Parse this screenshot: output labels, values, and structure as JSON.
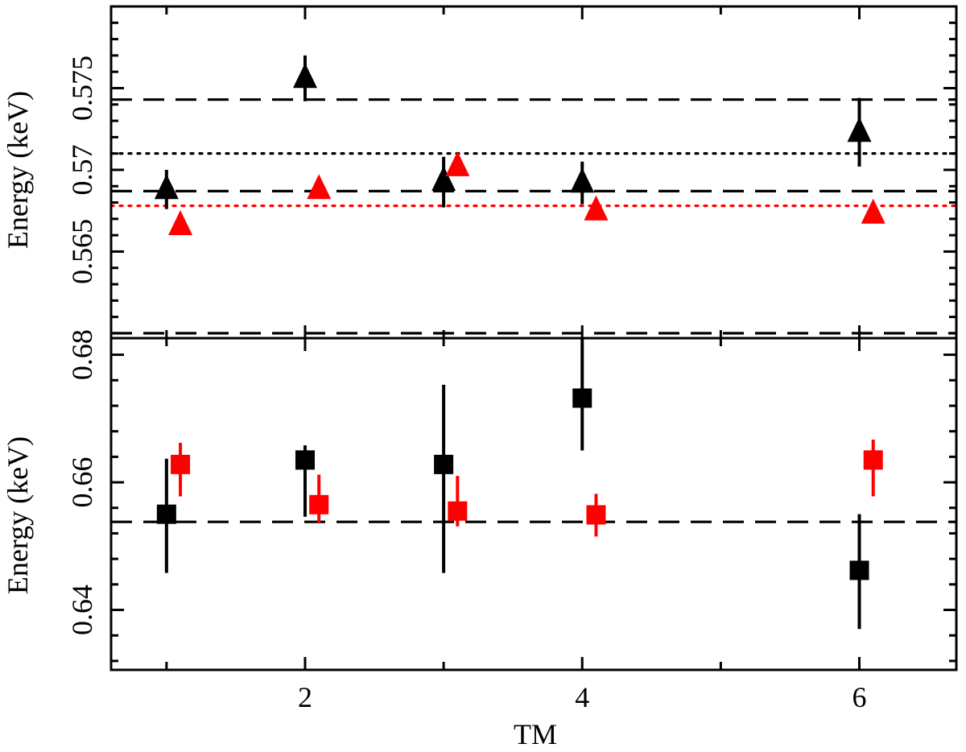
{
  "colors": {
    "black": "#000000",
    "red": "#ff0000",
    "background": "#ffffff"
  },
  "chart_data": [
    {
      "type": "scatter",
      "panel": "top",
      "marker": "triangle",
      "xlabel": "",
      "ylabel": "Energy (keV)",
      "xlim": [
        0.6,
        6.7
      ],
      "ylim": [
        0.5597,
        0.58
      ],
      "xticks": [
        2,
        4,
        6
      ],
      "xtick_labels": [
        "",
        "",
        ""
      ],
      "yticks": [
        0.565,
        0.57,
        0.575
      ],
      "ytick_labels": [
        "0.565",
        "0.57",
        "0.575"
      ],
      "series": [
        {
          "color": "#000000",
          "points": [
            {
              "x": 1,
              "y": 0.5688,
              "err": [
                0.5676,
                0.57
              ]
            },
            {
              "x": 2,
              "y": 0.5756,
              "err": [
                0.5742,
                0.577
              ]
            },
            {
              "x": 3,
              "y": 0.5693,
              "err": [
                0.5677,
                0.5708
              ]
            },
            {
              "x": 4,
              "y": 0.5692,
              "err": [
                0.5679,
                0.5705
              ]
            },
            {
              "x": 6,
              "y": 0.5723,
              "err": [
                0.5702,
                0.5744
              ]
            }
          ]
        },
        {
          "color": "#ff0000",
          "points": [
            {
              "x": 1.1,
              "y": 0.5666,
              "err": [
                0.5661,
                0.5671
              ]
            },
            {
              "x": 2.1,
              "y": 0.5688,
              "err": [
                0.5683,
                0.5693
              ]
            },
            {
              "x": 3.1,
              "y": 0.5702,
              "err": [
                0.5697,
                0.5707
              ]
            },
            {
              "x": 4.1,
              "y": 0.5675,
              "err": [
                0.567,
                0.568
              ]
            },
            {
              "x": 6.1,
              "y": 0.5673,
              "err": [
                0.5668,
                0.5678
              ]
            }
          ]
        }
      ],
      "hlines": [
        {
          "y": 0.5743,
          "style": "dashed",
          "color": "#000000"
        },
        {
          "y": 0.571,
          "style": "dotted",
          "color": "#000000"
        },
        {
          "y": 0.5687,
          "style": "dashed",
          "color": "#000000"
        },
        {
          "y": 0.5678,
          "style": "dotted",
          "color": "#ff0000"
        },
        {
          "y": 0.56,
          "style": "dashed",
          "color": "#000000"
        }
      ]
    },
    {
      "type": "scatter",
      "panel": "bottom",
      "marker": "square",
      "xlabel": "TM",
      "ylabel": "Energy (keV)",
      "xlim": [
        0.6,
        6.7
      ],
      "ylim": [
        0.6306,
        0.6826
      ],
      "xticks": [
        2,
        4,
        6
      ],
      "xtick_labels": [
        "2",
        "4",
        "6"
      ],
      "yticks": [
        0.64,
        0.66,
        0.68
      ],
      "ytick_labels": [
        "0.64",
        "0.66",
        "0.68"
      ],
      "series": [
        {
          "color": "#000000",
          "points": [
            {
              "x": 1,
              "y": 0.655,
              "err": [
                0.6458,
                0.6637
              ]
            },
            {
              "x": 2,
              "y": 0.6635,
              "err": [
                0.6546,
                0.6658
              ]
            },
            {
              "x": 3,
              "y": 0.6628,
              "err": [
                0.6458,
                0.6753
              ]
            },
            {
              "x": 4,
              "y": 0.6732,
              "err": [
                0.665,
                0.6826
              ]
            },
            {
              "x": 6,
              "y": 0.6462,
              "err": [
                0.637,
                0.655
              ]
            }
          ]
        },
        {
          "color": "#ff0000",
          "points": [
            {
              "x": 1.1,
              "y": 0.6628,
              "err": [
                0.6578,
                0.6662
              ]
            },
            {
              "x": 2.1,
              "y": 0.6565,
              "err": [
                0.6537,
                0.6612
              ]
            },
            {
              "x": 3.1,
              "y": 0.6555,
              "err": [
                0.6531,
                0.661
              ]
            },
            {
              "x": 4.1,
              "y": 0.6549,
              "err": [
                0.6515,
                0.6582
              ]
            },
            {
              "x": 6.1,
              "y": 0.6635,
              "err": [
                0.6578,
                0.6667
              ]
            }
          ]
        }
      ],
      "hlines": [
        {
          "y": 0.6538,
          "style": "dashed",
          "color": "#000000"
        }
      ]
    }
  ]
}
